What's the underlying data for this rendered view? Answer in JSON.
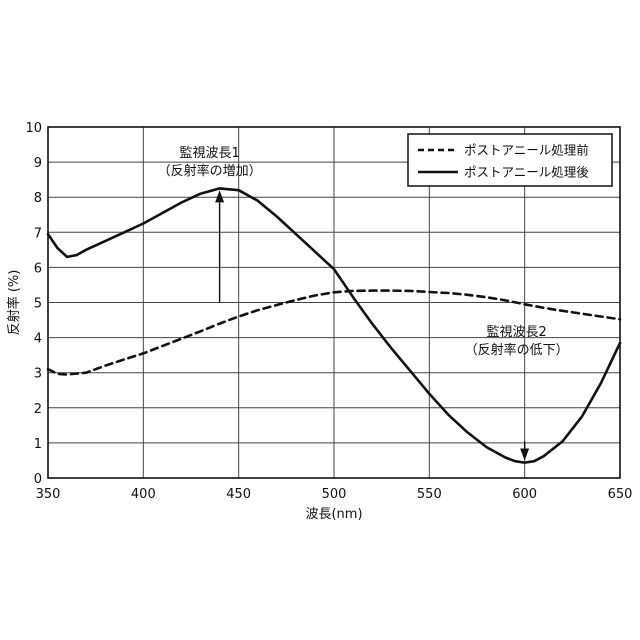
{
  "chart_data": {
    "type": "line",
    "xlabel": "波長(nm)",
    "ylabel": "反射率 (%)",
    "xlim": [
      350,
      650
    ],
    "ylim": [
      0,
      10
    ],
    "x_ticks": [
      350,
      400,
      450,
      500,
      550,
      600,
      650
    ],
    "y_ticks": [
      0,
      1,
      2,
      3,
      4,
      5,
      6,
      7,
      8,
      9,
      10
    ],
    "grid": true,
    "legend_position": "top-right",
    "series": [
      {
        "name": "ポストアニール処理前",
        "style": "dashed",
        "x": [
          350,
          355,
          360,
          370,
          380,
          390,
          400,
          410,
          420,
          430,
          440,
          450,
          460,
          470,
          480,
          490,
          500,
          510,
          520,
          530,
          540,
          550,
          560,
          570,
          580,
          590,
          600,
          610,
          620,
          630,
          640,
          650
        ],
        "y": [
          3.1,
          2.97,
          2.95,
          3.0,
          3.2,
          3.38,
          3.55,
          3.76,
          3.97,
          4.18,
          4.4,
          4.6,
          4.78,
          4.93,
          5.07,
          5.2,
          5.29,
          5.33,
          5.34,
          5.34,
          5.33,
          5.3,
          5.27,
          5.22,
          5.15,
          5.06,
          4.95,
          4.85,
          4.76,
          4.68,
          4.6,
          4.52
        ]
      },
      {
        "name": "ポストアニール処理後",
        "style": "solid",
        "x": [
          350,
          355,
          360,
          365,
          370,
          380,
          390,
          400,
          410,
          420,
          430,
          440,
          450,
          460,
          470,
          480,
          490,
          500,
          510,
          520,
          530,
          540,
          550,
          560,
          570,
          580,
          590,
          595,
          600,
          605,
          610,
          620,
          630,
          640,
          650
        ],
        "y": [
          6.95,
          6.55,
          6.3,
          6.35,
          6.5,
          6.75,
          7.0,
          7.25,
          7.55,
          7.85,
          8.1,
          8.25,
          8.2,
          7.9,
          7.45,
          6.95,
          6.45,
          5.95,
          5.15,
          4.4,
          3.7,
          3.05,
          2.4,
          1.8,
          1.3,
          0.88,
          0.58,
          0.48,
          0.44,
          0.48,
          0.62,
          1.05,
          1.75,
          2.7,
          3.85
        ]
      }
    ],
    "annotations": [
      {
        "line1": "監視波長1",
        "line2": "（反射率の増加）",
        "arrow_x": 440,
        "arrow_from_y": 5.0,
        "arrow_to_y": 8.25
      },
      {
        "line1": "監視波長2",
        "line2": "（反射率の低下）",
        "arrow_x": 600,
        "arrow_from_y": 1.05,
        "arrow_to_y": 0.44
      }
    ]
  }
}
